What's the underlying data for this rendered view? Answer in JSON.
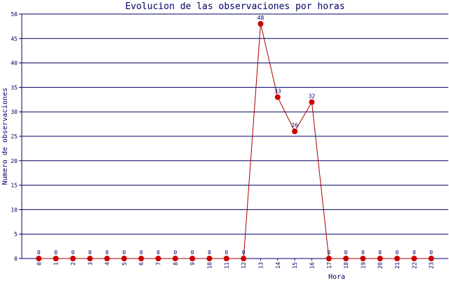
{
  "chart_data": {
    "type": "line",
    "title": "Evolucion de las observaciones por horas",
    "x_label": "Hora",
    "y_label": "Numero de observaciones",
    "categories": [
      "0",
      "1",
      "2",
      "3",
      "4",
      "5",
      "6",
      "7",
      "8",
      "9",
      "10",
      "11",
      "12",
      "13",
      "14",
      "15",
      "16",
      "17",
      "18",
      "19",
      "20",
      "21",
      "22",
      "23"
    ],
    "series": [
      {
        "name": "Observaciones",
        "color": "#cc0000",
        "line_color": "#aa0000",
        "values": [
          0,
          0,
          0,
          0,
          0,
          0,
          0,
          0,
          0,
          0,
          0,
          0,
          0,
          48,
          33,
          26,
          32,
          0,
          0,
          0,
          0,
          0,
          0,
          0
        ]
      }
    ],
    "ylim": [
      0,
      50
    ],
    "yticks": [
      0,
      5,
      10,
      15,
      20,
      25,
      30,
      35,
      40,
      45,
      50
    ],
    "grid": true
  }
}
